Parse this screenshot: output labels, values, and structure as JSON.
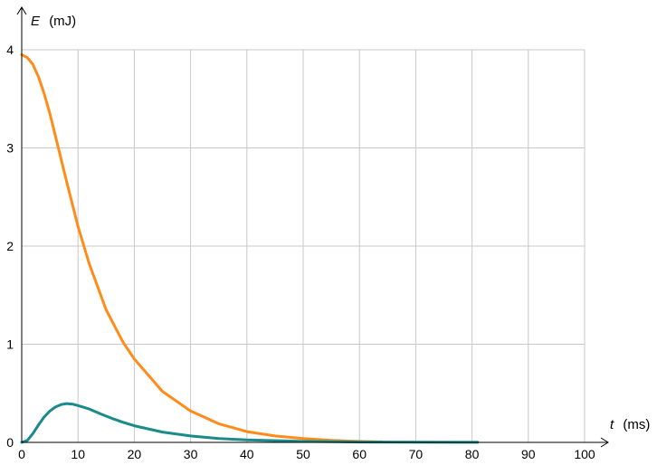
{
  "chart_data": {
    "type": "line",
    "x_axis": {
      "variable": "t",
      "unit": "(ms)",
      "range": [
        0,
        100
      ],
      "ticks": [
        0,
        10,
        20,
        30,
        40,
        50,
        60,
        70,
        80,
        90,
        100
      ]
    },
    "y_axis": {
      "variable": "E",
      "unit": "(mJ)",
      "range": [
        0,
        4
      ],
      "ticks": [
        0,
        1,
        2,
        3,
        4
      ]
    },
    "grid": true,
    "colors": {
      "grid": "#c8c8c8",
      "axis": "#000000",
      "orange": "#ff8c1a",
      "teal": "#1a8a8a"
    },
    "series": [
      {
        "color": "orange",
        "x": [
          0,
          1,
          2,
          3,
          4,
          5,
          6,
          8,
          10,
          12,
          15,
          18,
          20,
          25,
          30,
          35,
          40,
          45,
          50,
          55,
          60,
          64
        ],
        "y": [
          3.95,
          3.92,
          3.85,
          3.72,
          3.55,
          3.35,
          3.12,
          2.65,
          2.2,
          1.82,
          1.35,
          1.02,
          0.85,
          0.52,
          0.32,
          0.19,
          0.11,
          0.065,
          0.04,
          0.02,
          0.01,
          0.005
        ]
      },
      {
        "color": "teal",
        "x": [
          0,
          1,
          2,
          3,
          4,
          5,
          6,
          7,
          8,
          9,
          10,
          12,
          14,
          16,
          18,
          20,
          25,
          30,
          35,
          40,
          50,
          60,
          70,
          81
        ],
        "y": [
          0.0,
          0.02,
          0.09,
          0.18,
          0.26,
          0.32,
          0.36,
          0.385,
          0.395,
          0.39,
          0.375,
          0.34,
          0.29,
          0.245,
          0.205,
          0.17,
          0.105,
          0.065,
          0.04,
          0.025,
          0.01,
          0.004,
          0.002,
          0.001
        ]
      }
    ]
  }
}
